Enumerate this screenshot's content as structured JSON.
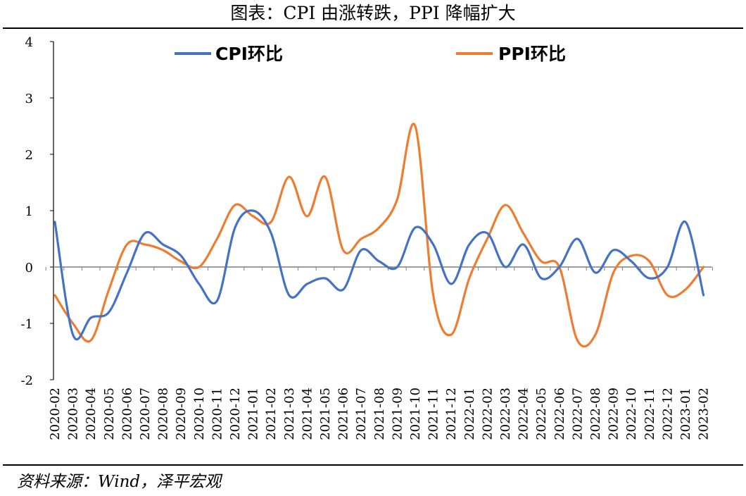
{
  "title": "图表：CPI 由涨转跌，PPI 降幅扩大",
  "source": "资料来源：Wind，泽平宏观",
  "chart_data": {
    "type": "line",
    "title": "图表：CPI 由涨转跌，PPI 降幅扩大",
    "xlabel": "",
    "ylabel": "",
    "ylim": [
      -2,
      4
    ],
    "yticks": [
      -2,
      -1,
      0,
      1,
      2,
      3,
      4
    ],
    "grid": false,
    "legend_position": "top",
    "categories": [
      "2020-02",
      "2020-03",
      "2020-04",
      "2020-05",
      "2020-06",
      "2020-07",
      "2020-08",
      "2020-09",
      "2020-10",
      "2020-11",
      "2020-12",
      "2021-01",
      "2021-02",
      "2021-03",
      "2021-04",
      "2021-05",
      "2021-06",
      "2021-07",
      "2021-08",
      "2021-09",
      "2021-10",
      "2021-11",
      "2021-12",
      "2022-01",
      "2022-02",
      "2022-03",
      "2022-04",
      "2022-05",
      "2022-06",
      "2022-07",
      "2022-08",
      "2022-09",
      "2022-10",
      "2022-11",
      "2022-12",
      "2023-01",
      "2023-02"
    ],
    "series": [
      {
        "name": "CPI环比",
        "color": "#4472C4",
        "values": [
          0.8,
          -1.2,
          -0.9,
          -0.8,
          -0.1,
          0.6,
          0.4,
          0.2,
          -0.3,
          -0.6,
          0.7,
          1.0,
          0.6,
          -0.5,
          -0.3,
          -0.2,
          -0.4,
          0.3,
          0.1,
          0.0,
          0.7,
          0.4,
          -0.3,
          0.4,
          0.6,
          0.0,
          0.4,
          -0.2,
          0.0,
          0.5,
          -0.1,
          0.3,
          0.1,
          -0.2,
          0.0,
          0.8,
          -0.5
        ]
      },
      {
        "name": "PPI环比",
        "color": "#ED7D31",
        "values": [
          -0.5,
          -1.0,
          -1.3,
          -0.4,
          0.4,
          0.4,
          0.3,
          0.1,
          0.0,
          0.5,
          1.1,
          0.9,
          0.8,
          1.6,
          0.9,
          1.6,
          0.3,
          0.5,
          0.7,
          1.2,
          2.5,
          -0.5,
          -1.2,
          -0.2,
          0.5,
          1.1,
          0.6,
          0.1,
          0.0,
          -1.3,
          -1.2,
          -0.1,
          0.2,
          0.1,
          -0.5,
          -0.4,
          0.0
        ]
      }
    ]
  }
}
